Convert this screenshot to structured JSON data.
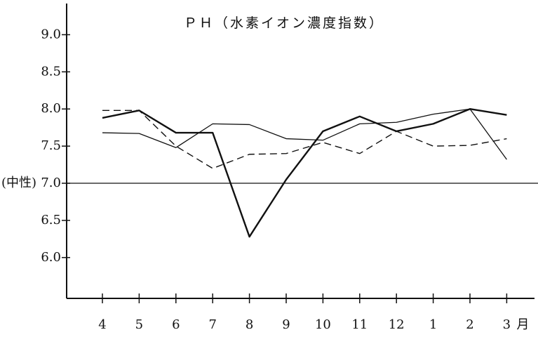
{
  "chart_data": {
    "type": "line",
    "title": "ＰＨ（水素イオン濃度指数）",
    "annotation": "(中性)",
    "xlabel": "月",
    "categories": [
      "4",
      "5",
      "6",
      "7",
      "8",
      "9",
      "10",
      "11",
      "12",
      "1",
      "2",
      "3"
    ],
    "series": [
      {
        "color": "#111111",
        "line_width": 2.4,
        "line_style": "solid",
        "values": [
          7.88,
          7.98,
          7.68,
          7.68,
          6.28,
          7.05,
          7.7,
          7.9,
          7.7,
          7.8,
          8.0,
          7.92
        ]
      },
      {
        "color": "#111111",
        "line_width": 1.3,
        "line_style": "solid",
        "values": [
          7.68,
          7.67,
          7.48,
          7.8,
          7.79,
          7.6,
          7.58,
          7.8,
          7.82,
          7.93,
          8.0,
          7.32
        ]
      },
      {
        "color": "#111111",
        "line_width": 1.4,
        "line_style": "dashed",
        "values": [
          7.98,
          7.98,
          7.5,
          7.2,
          7.39,
          7.4,
          7.55,
          7.4,
          7.7,
          7.5,
          7.51,
          7.6
        ]
      }
    ],
    "ylim": [
      5.45,
      9.42
    ],
    "yticks": [
      {
        "value": 6,
        "label": "6.0"
      },
      {
        "value": 6.5,
        "label": "6.5"
      },
      {
        "value": 7,
        "label": "7.0"
      },
      {
        "value": 7.5,
        "label": "7.5"
      },
      {
        "value": 8,
        "label": "8.0"
      },
      {
        "value": 8.5,
        "label": "8.5"
      },
      {
        "value": 9,
        "label": "9.0"
      }
    ],
    "hline": 7,
    "grid": false
  }
}
